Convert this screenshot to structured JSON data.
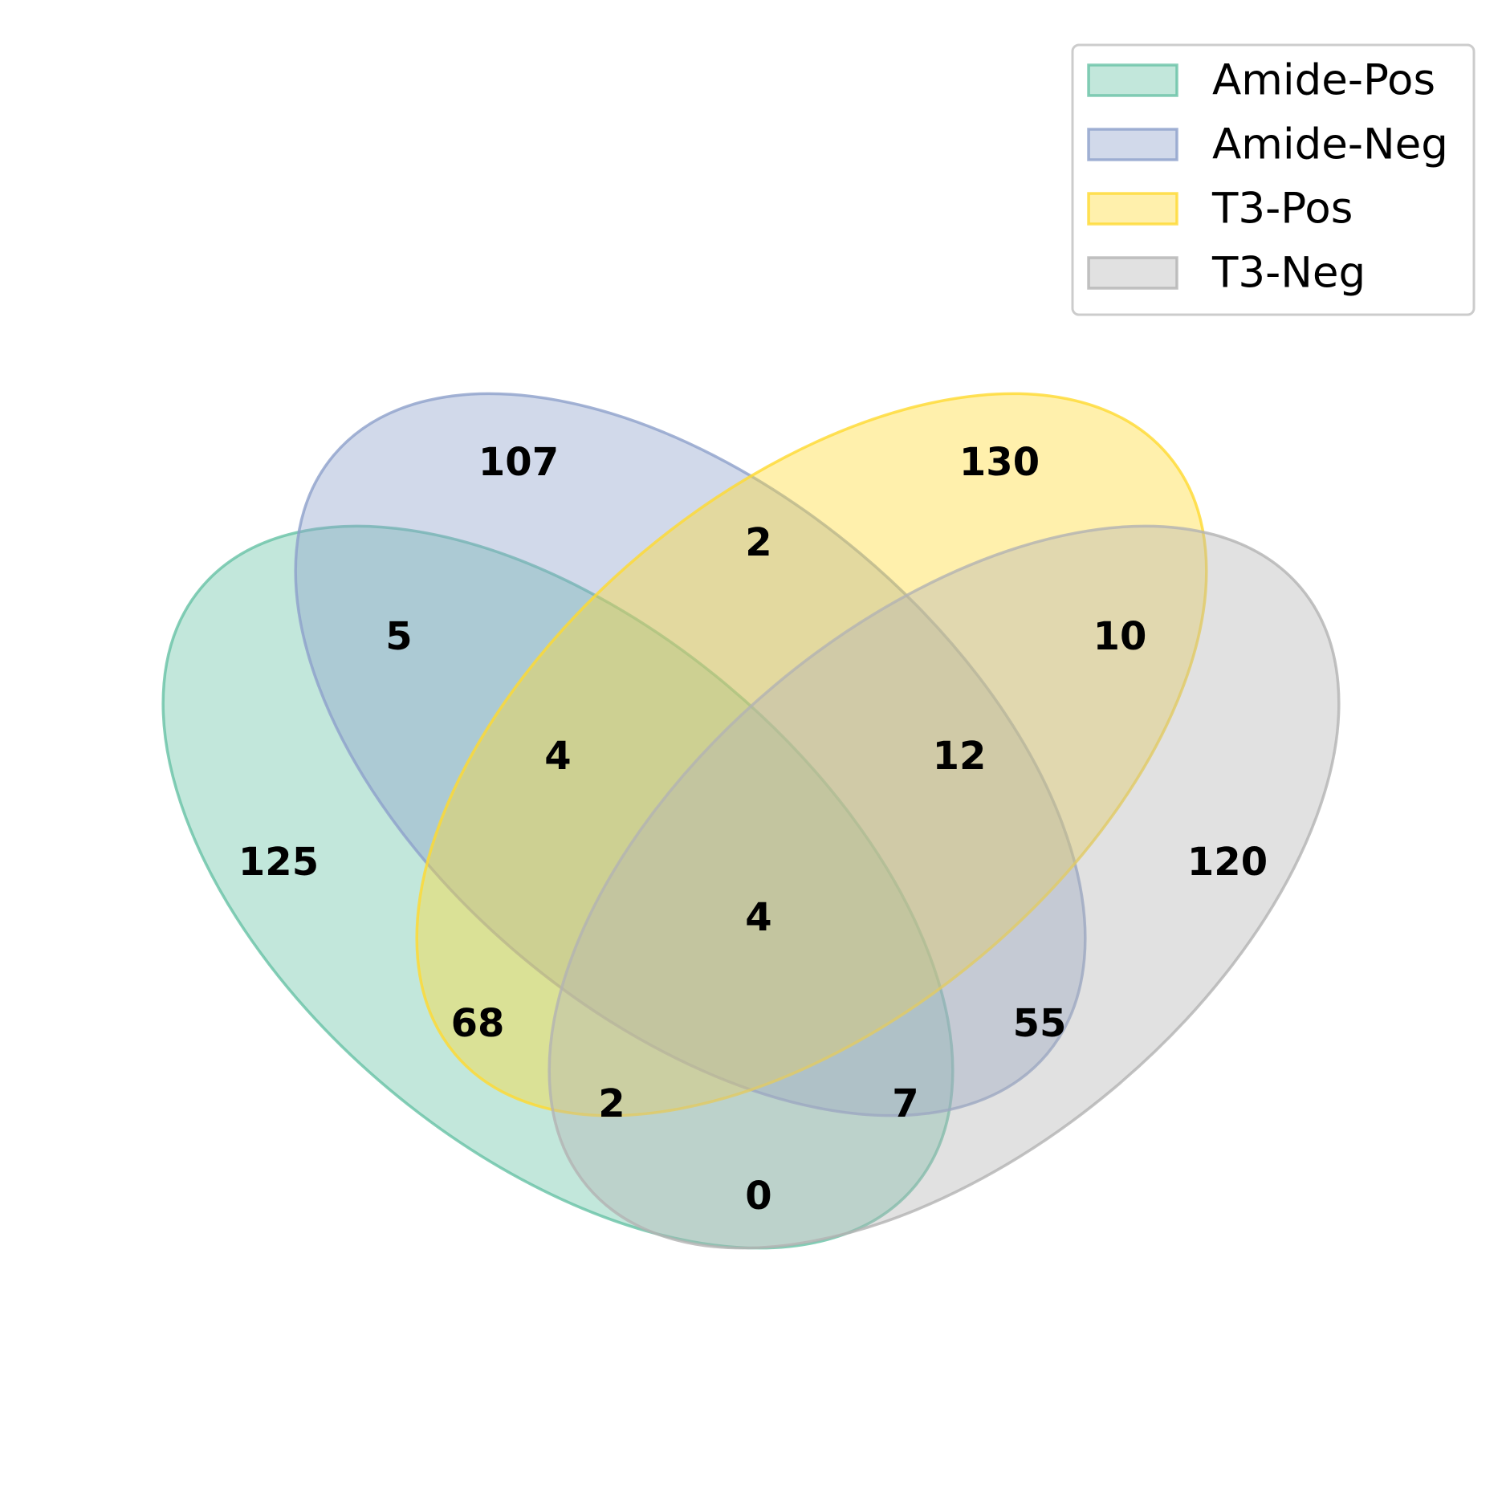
{
  "chart_data": {
    "type": "venn",
    "sets": [
      {
        "name": "Amide-Pos",
        "color": "#66c2a5"
      },
      {
        "name": "Amide-Neg",
        "color": "#8da0cb"
      },
      {
        "name": "T3-Pos",
        "color": "#ffd92f"
      },
      {
        "name": "T3-Neg",
        "color": "#b3b3b3"
      }
    ],
    "regions": [
      {
        "sets": [
          "Amide-Pos"
        ],
        "value": "125"
      },
      {
        "sets": [
          "Amide-Neg"
        ],
        "value": "107"
      },
      {
        "sets": [
          "T3-Pos"
        ],
        "value": "130"
      },
      {
        "sets": [
          "T3-Neg"
        ],
        "value": "120"
      },
      {
        "sets": [
          "Amide-Pos",
          "Amide-Neg"
        ],
        "value": "5"
      },
      {
        "sets": [
          "Amide-Neg",
          "T3-Pos"
        ],
        "value": "2"
      },
      {
        "sets": [
          "T3-Pos",
          "T3-Neg"
        ],
        "value": "10"
      },
      {
        "sets": [
          "Amide-Pos",
          "Amide-Neg",
          "T3-Pos"
        ],
        "value": "4"
      },
      {
        "sets": [
          "Amide-Neg",
          "T3-Pos",
          "T3-Neg"
        ],
        "value": "12"
      },
      {
        "sets": [
          "Amide-Pos",
          "Amide-Neg",
          "T3-Pos",
          "T3-Neg"
        ],
        "value": "4"
      },
      {
        "sets": [
          "Amide-Pos",
          "T3-Pos"
        ],
        "value": "68"
      },
      {
        "sets": [
          "Amide-Neg",
          "T3-Neg"
        ],
        "value": "55"
      },
      {
        "sets": [
          "Amide-Pos",
          "T3-Pos",
          "T3-Neg"
        ],
        "value": "2"
      },
      {
        "sets": [
          "Amide-Pos",
          "Amide-Neg",
          "T3-Neg"
        ],
        "value": "7"
      },
      {
        "sets": [
          "Amide-Pos",
          "T3-Neg"
        ],
        "value": "0"
      }
    ],
    "legend": {
      "placement": "top-right"
    }
  }
}
